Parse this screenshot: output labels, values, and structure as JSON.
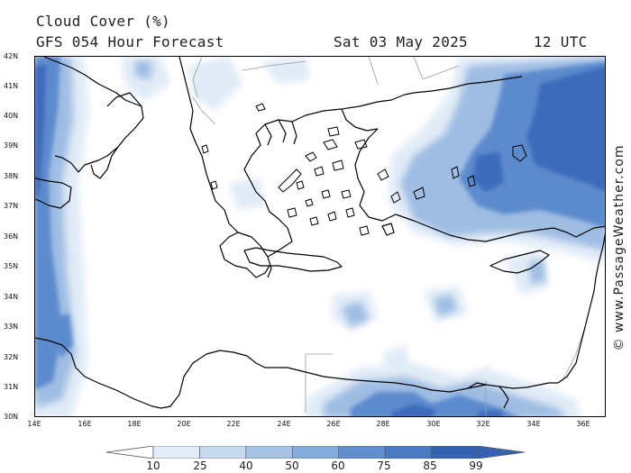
{
  "header": {
    "title": "Cloud Cover (%)",
    "model_line": "GFS 054 Hour Forecast",
    "date": "Sat 03 May 2025",
    "time": "12 UTC"
  },
  "watermark": "© www.PassageWeather.com",
  "axes": {
    "lat_labels": [
      "42N",
      "41N",
      "40N",
      "39N",
      "38N",
      "37N",
      "36N",
      "35N",
      "34N",
      "33N",
      "32N",
      "31N",
      "30N"
    ],
    "lon_labels": [
      "14E",
      "16E",
      "18E",
      "20E",
      "22E",
      "24E",
      "26E",
      "28E",
      "30E",
      "32E",
      "34E",
      "36E"
    ]
  },
  "legend": {
    "values": [
      "10",
      "25",
      "40",
      "50",
      "60",
      "75",
      "85",
      "99"
    ],
    "colors": [
      "#ffffff",
      "#e3edf8",
      "#c6d9ef",
      "#a6c3e6",
      "#86acdc",
      "#628fcf",
      "#4a7ac4",
      "#3461b2"
    ]
  },
  "map_layers": {
    "land_color": "#ffffff",
    "coast_color": "#000000",
    "cloud_colors": {
      "light": "#dde9f6",
      "medium": "#9fbde3",
      "heavy": "#5b8bcd",
      "dense": "#3e6bbb"
    }
  }
}
